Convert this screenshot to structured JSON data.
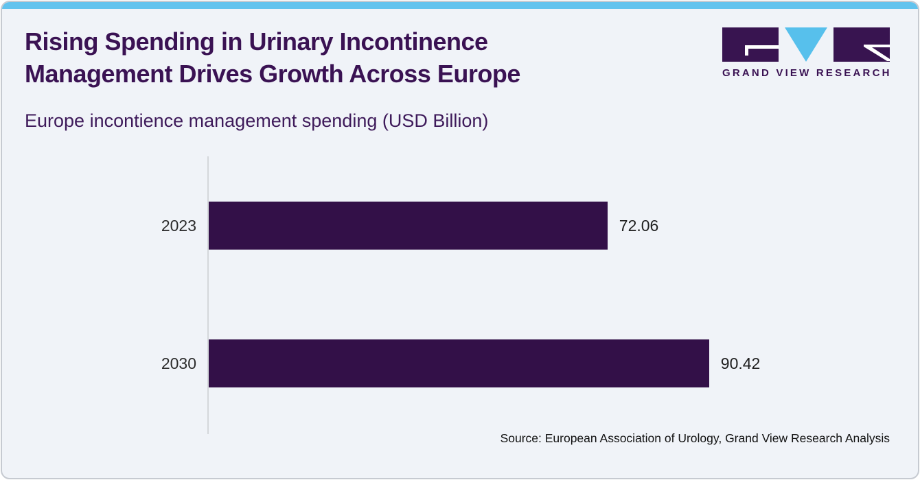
{
  "header": {
    "title_line1": "Rising Spending in Urinary Incontinence",
    "title_line2": "Management Drives Growth Across Europe",
    "subtitle": "Europe incontience management spending (USD Billion)"
  },
  "logo": {
    "brand": "GRAND VIEW RESEARCH"
  },
  "chart_data": {
    "type": "bar",
    "orientation": "horizontal",
    "title": "Europe incontience management spending (USD Billion)",
    "categories": [
      "2023",
      "2030"
    ],
    "values": [
      72.06,
      90.42
    ],
    "value_labels": [
      "72.06",
      "90.42"
    ],
    "xlabel": "",
    "ylabel": "",
    "xlim": [
      0,
      100
    ],
    "grid": false,
    "legend": false,
    "bar_color": "#331048"
  },
  "footer": {
    "source": "Source: European Association of Urology, Grand View Research Analysis"
  },
  "colors": {
    "accent_blue": "#62c3ee",
    "brand_purple": "#3a1253",
    "bar_purple": "#331048",
    "card_background": "#f0f3f8",
    "card_border": "#c6cad1",
    "axis_line": "#d4d7db"
  }
}
